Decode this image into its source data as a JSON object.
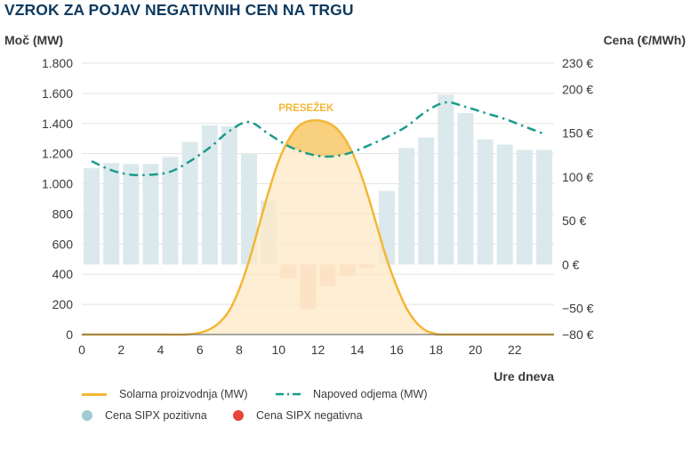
{
  "title": "VZROK ZA POJAV NEGATIVNIH CEN NA TRGU",
  "colors": {
    "solar": "#f3b737",
    "solar_fill": "#fde9c6",
    "demand": "#1a9c8c",
    "price_pos": "#dce9ec",
    "price_neg": "#f9cfc4",
    "price_pos_legend": "#9fcbd2",
    "price_neg_legend": "#e8453c",
    "grid": "#e3e3e3",
    "title": "#0e3a5e"
  },
  "chart_data": {
    "type": "bar+line",
    "title": "VZROK ZA POJAV NEGATIVNIH CEN NA TRGU",
    "left_axis": {
      "label": "Moč (MW)",
      "range": [
        0,
        1800
      ],
      "ticks": [
        0,
        200,
        400,
        600,
        800,
        1000,
        1200,
        1400,
        1600,
        1800
      ],
      "tick_labels": [
        "0",
        "200",
        "400",
        "600",
        "800",
        "1.000",
        "1.200",
        "1.400",
        "1.600",
        "1.800"
      ]
    },
    "right_axis": {
      "label": "Cena (€/MWh)",
      "range": [
        -80,
        230
      ],
      "ticks": [
        -80,
        -50,
        0,
        50,
        100,
        150,
        200,
        230
      ],
      "tick_labels": [
        "−80 €",
        "−50 €",
        "0 €",
        "50 €",
        "100 €",
        "150 €",
        "200 €",
        "230 €"
      ]
    },
    "x_axis": {
      "label": "Ure dneva",
      "range": [
        0,
        24
      ],
      "ticks": [
        0,
        2,
        4,
        6,
        8,
        10,
        12,
        14,
        16,
        18,
        20,
        22
      ],
      "tick_labels": [
        "0",
        "2",
        "4",
        "6",
        "8",
        "10",
        "12",
        "14",
        "16",
        "18",
        "20",
        "22"
      ]
    },
    "annotation": "PRESEŽEK",
    "price_sipx": {
      "name": "Cena SIPX",
      "hours": [
        0,
        1,
        2,
        3,
        4,
        5,
        6,
        7,
        8,
        9,
        10,
        11,
        12,
        13,
        14,
        15,
        16,
        17,
        18,
        19,
        20,
        21,
        22,
        23
      ],
      "values": [
        110,
        116,
        115,
        115,
        123,
        140,
        159,
        158,
        126,
        73,
        -16,
        -51,
        -25,
        -13,
        -4,
        84,
        133,
        145,
        194,
        173,
        143,
        137,
        131,
        131
      ]
    },
    "solar_production": {
      "name": "Solarna proizvodnja (MW)",
      "x": [
        0,
        4,
        5.3,
        6,
        6.5,
        7,
        7.5,
        8,
        8.5,
        9,
        9.5,
        10,
        10.5,
        11,
        11.5,
        12,
        12.5,
        13,
        13.5,
        14,
        14.5,
        15,
        15.5,
        16,
        16.5,
        17,
        17.5,
        18,
        18.6,
        24
      ],
      "y": [
        0,
        0,
        0,
        12,
        35,
        80,
        160,
        300,
        490,
        720,
        950,
        1150,
        1290,
        1380,
        1415,
        1420,
        1405,
        1360,
        1270,
        1130,
        940,
        720,
        500,
        320,
        175,
        80,
        25,
        5,
        0,
        0
      ]
    },
    "demand_forecast": {
      "name": "Napoved odjema (MW)",
      "x": [
        0.5,
        1.5,
        2.5,
        3.5,
        4.5,
        5.5,
        6.5,
        7.5,
        8.5,
        9.5,
        10.5,
        11.5,
        12.5,
        13.5,
        14.5,
        15.5,
        16.5,
        17.5,
        18.5,
        19.5,
        20.5,
        21.5,
        22.5,
        23.5
      ],
      "y": [
        1150,
        1090,
        1060,
        1060,
        1080,
        1150,
        1240,
        1350,
        1410,
        1330,
        1250,
        1200,
        1180,
        1200,
        1250,
        1310,
        1380,
        1480,
        1540,
        1510,
        1470,
        1430,
        1380,
        1330
      ]
    }
  },
  "legend": {
    "solar": "Solarna proizvodnja (MW)",
    "demand": "Napoved odjema (MW)",
    "price_pos": "Cena SIPX pozitivna",
    "price_neg": "Cena SIPX negativna"
  }
}
